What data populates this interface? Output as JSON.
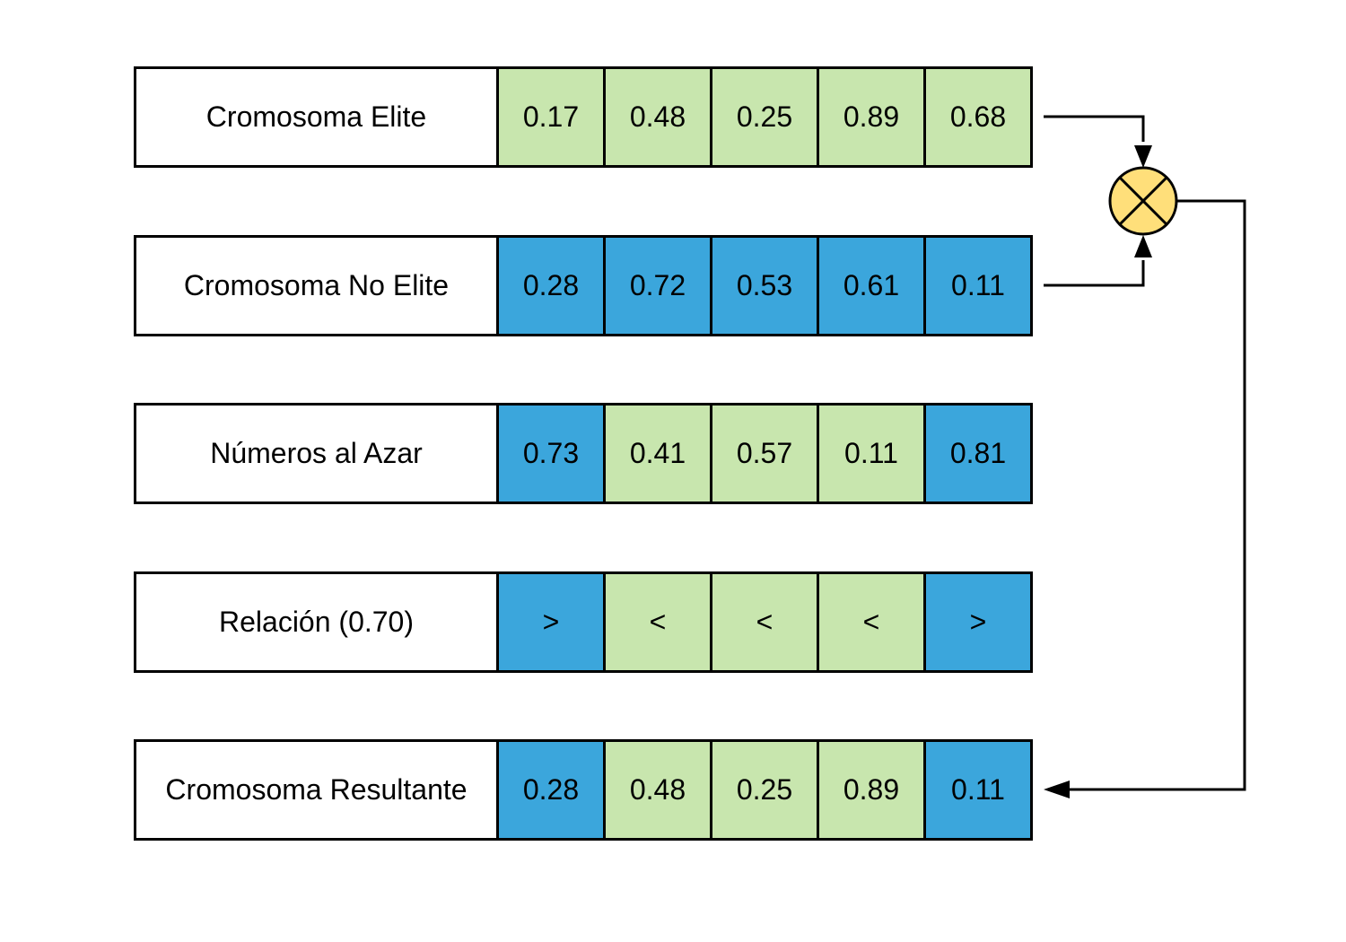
{
  "rows": [
    {
      "label": "Cromosoma Elite",
      "cells": [
        {
          "text": "0.17",
          "color": "green"
        },
        {
          "text": "0.48",
          "color": "green"
        },
        {
          "text": "0.25",
          "color": "green"
        },
        {
          "text": "0.89",
          "color": "green"
        },
        {
          "text": "0.68",
          "color": "green"
        }
      ]
    },
    {
      "label": "Cromosoma No Elite",
      "cells": [
        {
          "text": "0.28",
          "color": "blue"
        },
        {
          "text": "0.72",
          "color": "blue"
        },
        {
          "text": "0.53",
          "color": "blue"
        },
        {
          "text": "0.61",
          "color": "blue"
        },
        {
          "text": "0.11",
          "color": "blue"
        }
      ]
    },
    {
      "label": "Números al Azar",
      "cells": [
        {
          "text": "0.73",
          "color": "blue"
        },
        {
          "text": "0.41",
          "color": "green"
        },
        {
          "text": "0.57",
          "color": "green"
        },
        {
          "text": "0.11",
          "color": "green"
        },
        {
          "text": "0.81",
          "color": "blue"
        }
      ]
    },
    {
      "label": "Relación (0.70)",
      "cells": [
        {
          "text": ">",
          "color": "blue"
        },
        {
          "text": "<",
          "color": "green"
        },
        {
          "text": "<",
          "color": "green"
        },
        {
          "text": "<",
          "color": "green"
        },
        {
          "text": ">",
          "color": "blue"
        }
      ]
    },
    {
      "label": "Cromosoma Resultante",
      "cells": [
        {
          "text": "0.28",
          "color": "blue"
        },
        {
          "text": "0.48",
          "color": "green"
        },
        {
          "text": "0.25",
          "color": "green"
        },
        {
          "text": "0.89",
          "color": "green"
        },
        {
          "text": "0.11",
          "color": "blue"
        }
      ]
    }
  ],
  "colors": {
    "green": "#c8e6ae",
    "blue": "#3ba6dc",
    "operator_fill": "#ffdf7a",
    "border": "#000000"
  },
  "operator": {
    "icon": "crossover-operator-icon",
    "symbol": "⊗"
  }
}
